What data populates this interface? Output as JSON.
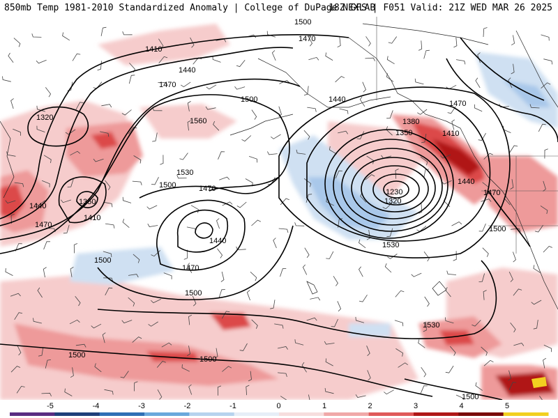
{
  "header": {
    "left_title": "850mb Temp 1981-2010 Standardized Anomaly | College of DuPage NEXLAB",
    "right_title": "18Z GFS | F051 Valid: 21Z WED MAR 26 2025"
  },
  "colorbar": {
    "ticks": [
      "-5",
      "-4",
      "-3",
      "-2",
      "-1",
      "0",
      "1",
      "2",
      "3",
      "4",
      "5"
    ],
    "colors": [
      "#5a2d82",
      "#1f3f7a",
      "#2f6fb5",
      "#6aa8dc",
      "#b7d3ee",
      "#e6eef7",
      "#f6dede",
      "#f0a8a8",
      "#e05a5a",
      "#b01818",
      "#7a0a0a",
      "#f2d020"
    ]
  },
  "map": {
    "contour_labels": [
      "1500",
      "1470",
      "1410",
      "1440",
      "1470",
      "1500",
      "1320",
      "1560",
      "1530",
      "1500",
      "1470",
      "1440",
      "1350",
      "1410",
      "1440",
      "1470",
      "1500",
      "1470",
      "1440",
      "1380",
      "1410",
      "1350",
      "1230",
      "1320",
      "1470",
      "1440",
      "1470",
      "1500",
      "1530",
      "1500",
      "1530",
      "1500",
      "1500",
      "1500"
    ],
    "anomaly_colors": {
      "warm_1": "#f6cccc",
      "warm_2": "#ee9a9a",
      "warm_3": "#dc4a4a",
      "warm_4": "#b01818",
      "warm_5": "#f2d020",
      "cold_1": "#cfe0f2",
      "cold_2": "#a9c8ea"
    }
  }
}
